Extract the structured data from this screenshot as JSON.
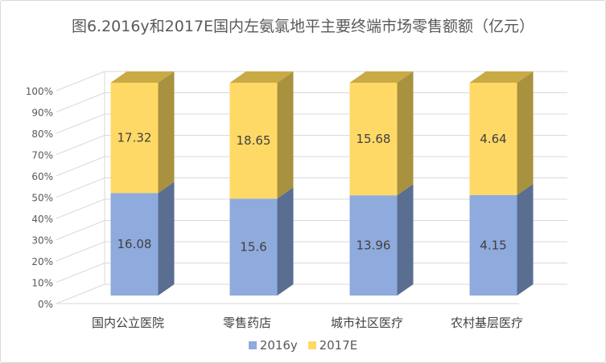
{
  "chart_data": {
    "type": "bar",
    "stacked": "percent",
    "three_d": true,
    "title": "图6.2016y和2017E国内左氨氯地平主要终端市场零售额额（亿元）",
    "categories": [
      "国内公立医院",
      "零售药店",
      "城市社区医疗",
      "农村基层医疗"
    ],
    "series": [
      {
        "name": "2016y",
        "values": [
          16.08,
          15.6,
          13.96,
          4.15
        ],
        "labels": [
          "16.08",
          "15.6",
          "13.96",
          "4.15"
        ]
      },
      {
        "name": "2017E",
        "values": [
          17.32,
          18.65,
          15.68,
          4.64
        ],
        "labels": [
          "17.32",
          "18.65",
          "15.68",
          "4.64"
        ]
      }
    ],
    "y_ticks": [
      "0%",
      "10%",
      "20%",
      "30%",
      "40%",
      "50%",
      "60%",
      "70%",
      "80%",
      "90%",
      "100%"
    ],
    "ylim": [
      0,
      100
    ],
    "grid": true,
    "legend_position": "bottom",
    "colors": {
      "2016y": {
        "front": "#8faadc",
        "side": "#5a6e92",
        "top": "#7388b6"
      },
      "2017E": {
        "front": "#ffd966",
        "side": "#a8913f",
        "top": "#c9aa45"
      },
      "gridline": "#d9d9d9",
      "axis_text": "#595959"
    }
  }
}
